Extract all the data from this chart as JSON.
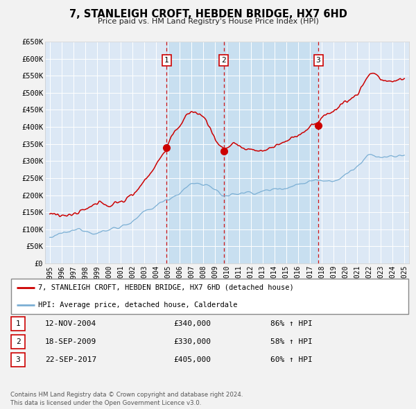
{
  "title": "7, STANLEIGH CROFT, HEBDEN BRIDGE, HX7 6HD",
  "subtitle": "Price paid vs. HM Land Registry's House Price Index (HPI)",
  "bg_color": "#f0f0f0",
  "plot_bg_color": "#dce8f5",
  "shaded_bg_color": "#c8dff0",
  "grid_color": "#ffffff",
  "legend_line1": "7, STANLEIGH CROFT, HEBDEN BRIDGE, HX7 6HD (detached house)",
  "legend_line2": "HPI: Average price, detached house, Calderdale",
  "red_color": "#cc0000",
  "blue_color": "#7bafd4",
  "transactions": [
    {
      "num": 1,
      "date": "12-NOV-2004",
      "date_x": 2004.87,
      "price": 340000,
      "pct": "86%",
      "label": "1"
    },
    {
      "num": 2,
      "date": "18-SEP-2009",
      "date_x": 2009.71,
      "price": 330000,
      "pct": "58%",
      "label": "2"
    },
    {
      "num": 3,
      "date": "22-SEP-2017",
      "date_x": 2017.72,
      "price": 405000,
      "pct": "60%",
      "label": "3"
    }
  ],
  "footer_line1": "Contains HM Land Registry data © Crown copyright and database right 2024.",
  "footer_line2": "This data is licensed under the Open Government Licence v3.0.",
  "ylim": [
    0,
    650000
  ],
  "xlim_start": 1994.6,
  "xlim_end": 2025.4,
  "yticks": [
    0,
    50000,
    100000,
    150000,
    200000,
    250000,
    300000,
    350000,
    400000,
    450000,
    500000,
    550000,
    600000,
    650000
  ],
  "ytick_labels": [
    "£0",
    "£50K",
    "£100K",
    "£150K",
    "£200K",
    "£250K",
    "£300K",
    "£350K",
    "£400K",
    "£450K",
    "£500K",
    "£550K",
    "£600K",
    "£650K"
  ],
  "xticks": [
    1995,
    1996,
    1997,
    1998,
    1999,
    2000,
    2001,
    2002,
    2003,
    2004,
    2005,
    2006,
    2007,
    2008,
    2009,
    2010,
    2011,
    2012,
    2013,
    2014,
    2015,
    2016,
    2017,
    2018,
    2019,
    2020,
    2021,
    2022,
    2023,
    2024,
    2025
  ]
}
